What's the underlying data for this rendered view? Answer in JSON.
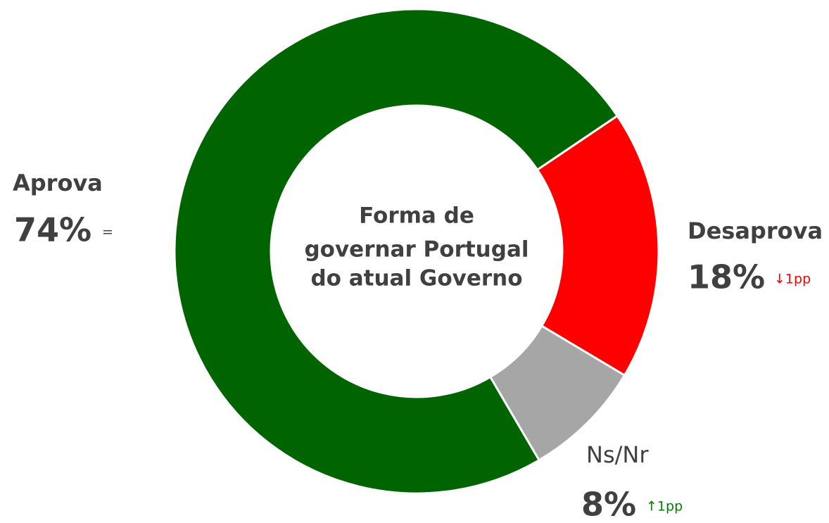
{
  "chart_data": {
    "type": "donut",
    "title": [
      "Forma de",
      "governar Portugal",
      "do atual Governo"
    ],
    "categories": [
      "Aprova",
      "Desaprova",
      "Ns/Nr"
    ],
    "values": [
      74,
      18,
      8
    ],
    "value_labels": [
      "74%",
      "18%",
      "8%"
    ],
    "colors": [
      "#006400",
      "#ff0000",
      "#a6a6a6"
    ],
    "changes": [
      "=",
      "↓1pp",
      "↑1pp"
    ],
    "change_colors": [
      "#404040",
      "#ff0000",
      "#008000"
    ]
  }
}
